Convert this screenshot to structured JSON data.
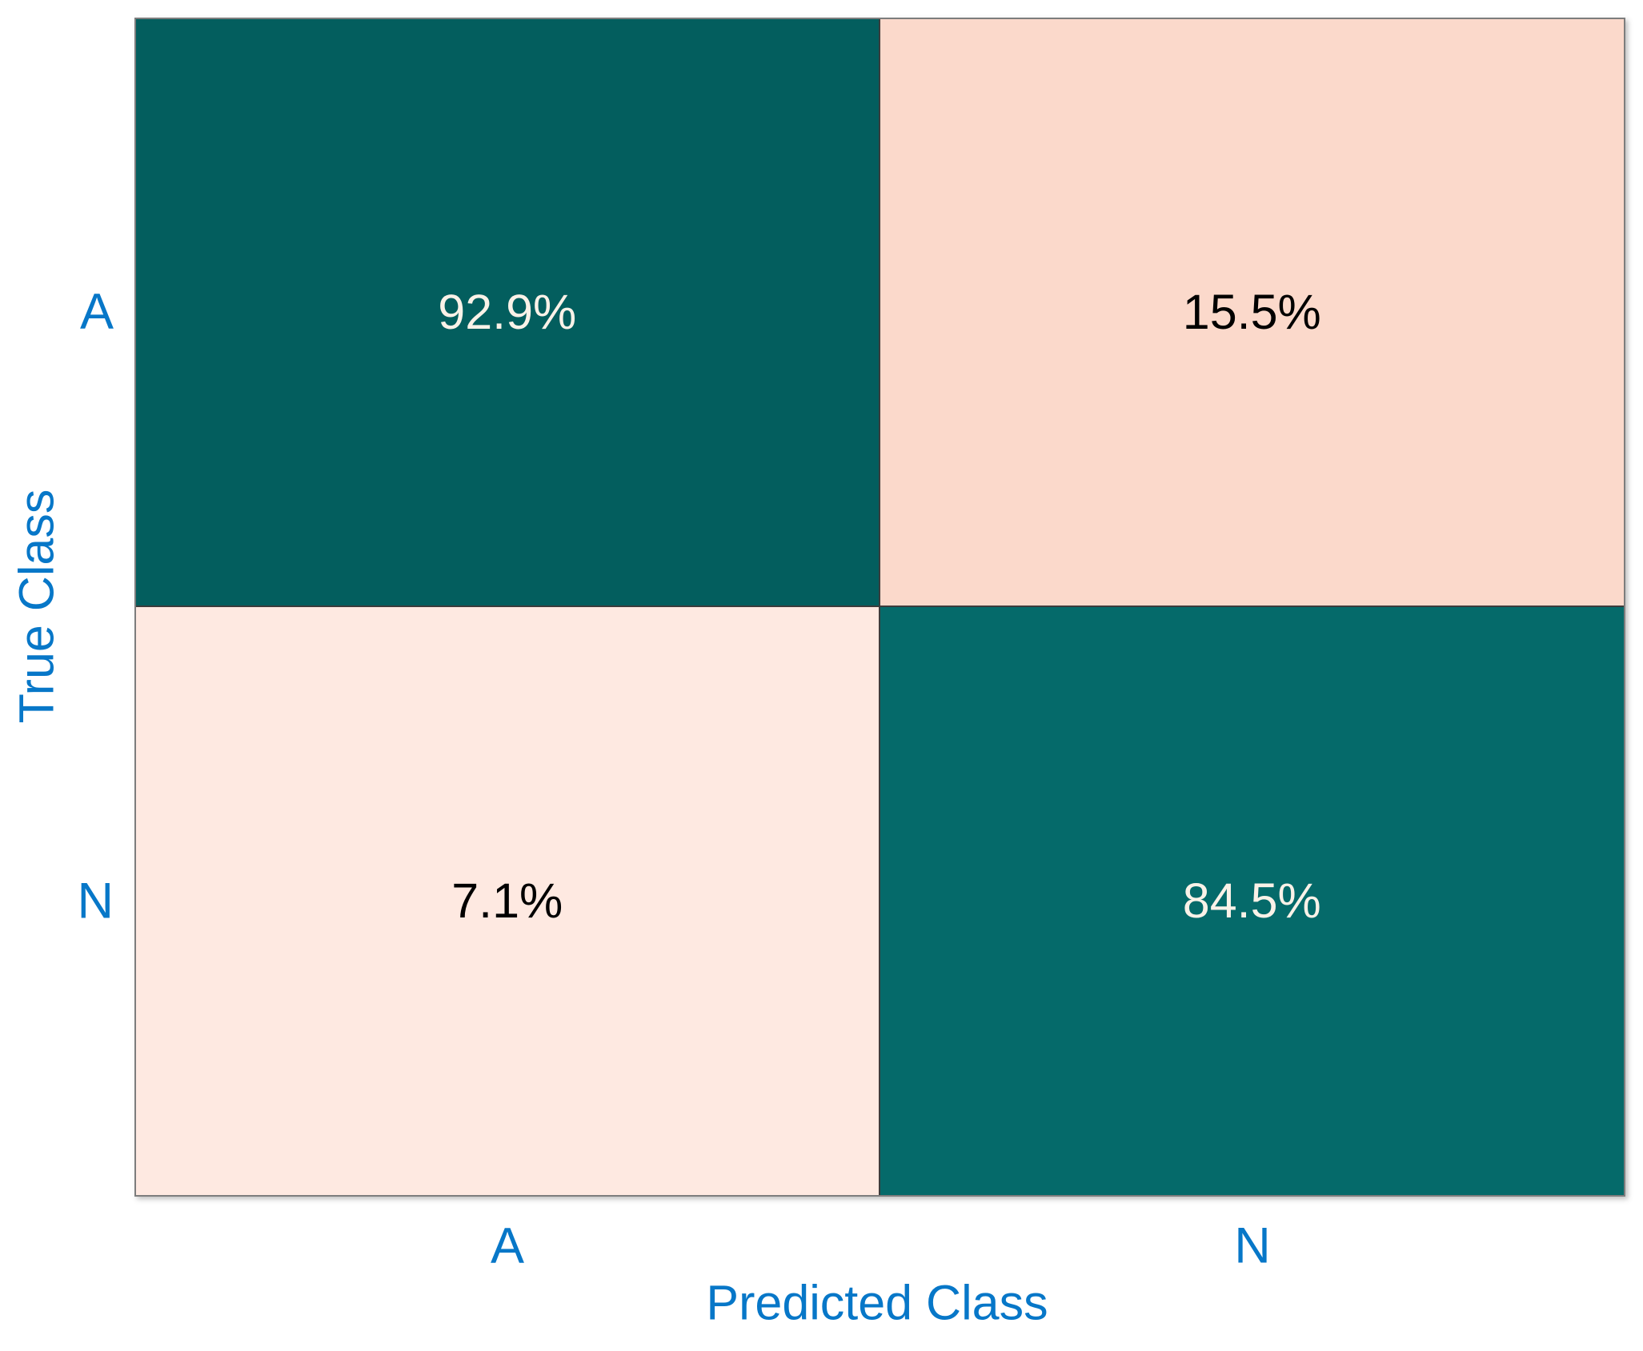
{
  "chart_data": {
    "type": "heatmap",
    "subtype": "confusion_matrix",
    "title": "",
    "xlabel": "Predicted Class",
    "ylabel": "True Class",
    "x_categories": [
      "A",
      "N"
    ],
    "y_categories": [
      "A",
      "N"
    ],
    "values_percent": [
      [
        92.9,
        15.5
      ],
      [
        7.1,
        84.5
      ]
    ],
    "cell_labels": [
      [
        "92.9%",
        "15.5%"
      ],
      [
        "7.1%",
        "84.5%"
      ]
    ],
    "normalization": "column-normalized (each column sums to 100%)",
    "legend_position": "none",
    "grid": "cell divider lines only",
    "colormap": {
      "diagonal_high": "dark teal",
      "off_diagonal_low": "light pink"
    }
  },
  "matrix": {
    "border_color": "#7d7d7d",
    "gridline_color": "#3c3c3c",
    "cells": [
      {
        "true_class": "A",
        "predicted_class": "A",
        "label": "92.9%",
        "bg": "#035e5e",
        "fg": "#faf2e8"
      },
      {
        "true_class": "A",
        "predicted_class": "N",
        "label": "15.5%",
        "bg": "#fbd9cb",
        "fg": "#000000"
      },
      {
        "true_class": "N",
        "predicted_class": "A",
        "label": "7.1%",
        "bg": "#fee9e1",
        "fg": "#000000"
      },
      {
        "true_class": "N",
        "predicted_class": "N",
        "label": "84.5%",
        "bg": "#056a6a",
        "fg": "#faf2e8"
      }
    ]
  },
  "axes": {
    "label_color": "#0777c8",
    "xlabel": "Predicted Class",
    "ylabel": "True Class",
    "xticks": [
      "A",
      "N"
    ],
    "yticks": [
      "A",
      "N"
    ]
  }
}
